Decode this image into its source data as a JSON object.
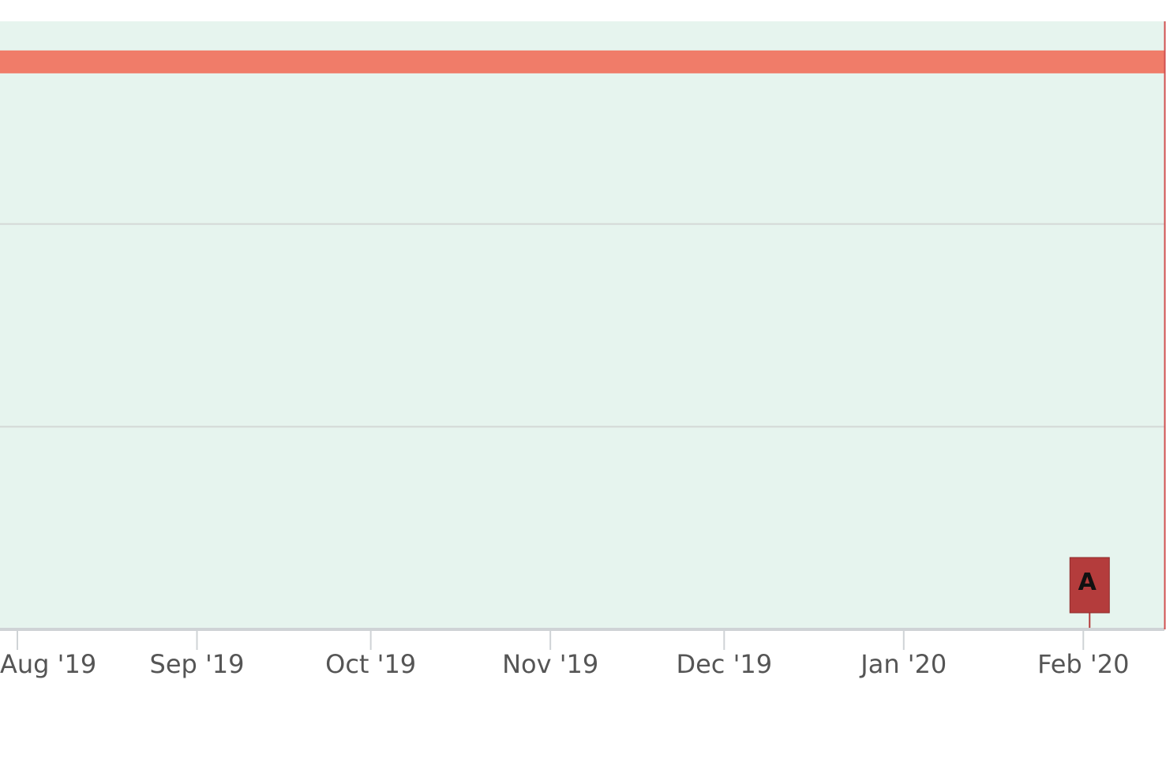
{
  "chart_data": {
    "type": "line",
    "title": "",
    "xlabel": "",
    "ylabel": "",
    "x_axis": {
      "type": "date",
      "range": [
        "2019-07-29",
        "2020-02-15"
      ],
      "ticks": [
        {
          "date": "2019-08-01",
          "label": "Aug '19"
        },
        {
          "date": "2019-09-01",
          "label": "Sep '19"
        },
        {
          "date": "2019-10-01",
          "label": "Oct '19"
        },
        {
          "date": "2019-11-01",
          "label": "Nov '19"
        },
        {
          "date": "2019-12-01",
          "label": "Dec '19"
        },
        {
          "date": "2020-01-01",
          "label": "Jan '20"
        },
        {
          "date": "2020-02-01",
          "label": "Feb '20"
        }
      ]
    },
    "y_axis": {
      "range": [
        0,
        3
      ],
      "gridlines": [
        1,
        2
      ],
      "labels_visible": false
    },
    "series": [
      {
        "color": "#f07c69",
        "points": [
          {
            "x": "2019-07-29",
            "y": 2.8
          },
          {
            "x": "2020-02-15",
            "y": 2.8
          }
        ]
      }
    ],
    "annotations": [
      {
        "label": "A",
        "date": "2020-02-01",
        "color": "#b43c3c"
      }
    ],
    "grid": true,
    "legend": "none",
    "colors": {
      "plot_background": "#e6f4ee",
      "gridline": "#d4d8d6",
      "axis_line": "#cfd3d6",
      "tick_label": "#555555",
      "right_edge_marker": "#d05050"
    }
  }
}
